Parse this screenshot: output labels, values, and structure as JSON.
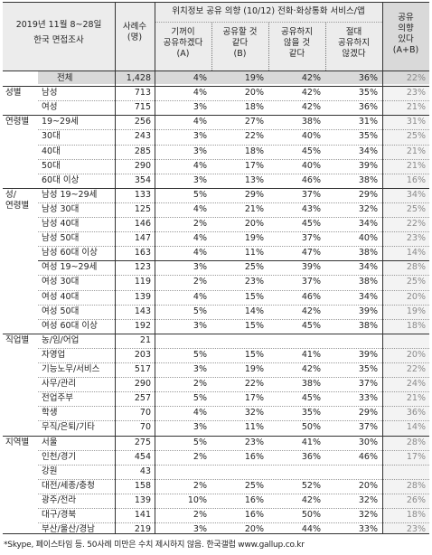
{
  "header": {
    "period": "2019년 11월 8~28일",
    "survey": "한국 면접조사",
    "cases": "사례수\n(명)",
    "group_title": "위치정보 공유 의향 (10/12) 전화·화상통화 서비스/앱",
    "col_a": "기꺼이\n공유하겠다\n(A)",
    "col_b": "공유할 것\n같다\n(B)",
    "col_c": "공유하지\n않을 것\n같다",
    "col_d": "절대\n공유하지\n않겠다",
    "col_ab": "공유\n의향\n있다\n(A+B)"
  },
  "rows": [
    {
      "group": "",
      "label": "전체",
      "n": "1,428",
      "a": "4%",
      "b": "19%",
      "c": "42%",
      "d": "36%",
      "ab": "22%"
    },
    {
      "group": "성별",
      "label": "남성",
      "n": "713",
      "a": "4%",
      "b": "20%",
      "c": "42%",
      "d": "35%",
      "ab": "23%"
    },
    {
      "group": "",
      "label": "여성",
      "n": "715",
      "a": "3%",
      "b": "18%",
      "c": "42%",
      "d": "36%",
      "ab": "21%"
    },
    {
      "group": "연령별",
      "label": "19~29세",
      "n": "256",
      "a": "4%",
      "b": "27%",
      "c": "38%",
      "d": "31%",
      "ab": "31%"
    },
    {
      "group": "",
      "label": "30대",
      "n": "243",
      "a": "3%",
      "b": "22%",
      "c": "40%",
      "d": "35%",
      "ab": "25%"
    },
    {
      "group": "",
      "label": "40대",
      "n": "285",
      "a": "3%",
      "b": "18%",
      "c": "45%",
      "d": "34%",
      "ab": "21%"
    },
    {
      "group": "",
      "label": "50대",
      "n": "290",
      "a": "4%",
      "b": "17%",
      "c": "40%",
      "d": "39%",
      "ab": "21%"
    },
    {
      "group": "",
      "label": "60대 이상",
      "n": "354",
      "a": "3%",
      "b": "13%",
      "c": "46%",
      "d": "38%",
      "ab": "16%"
    },
    {
      "group": "성/\n연령별",
      "label": "남성 19~29세",
      "n": "133",
      "a": "5%",
      "b": "29%",
      "c": "37%",
      "d": "29%",
      "ab": "34%"
    },
    {
      "group": "",
      "label": "남성 30대",
      "n": "125",
      "a": "4%",
      "b": "21%",
      "c": "43%",
      "d": "32%",
      "ab": "25%"
    },
    {
      "group": "",
      "label": "남성 40대",
      "n": "146",
      "a": "2%",
      "b": "20%",
      "c": "45%",
      "d": "34%",
      "ab": "22%"
    },
    {
      "group": "",
      "label": "남성 50대",
      "n": "147",
      "a": "4%",
      "b": "19%",
      "c": "37%",
      "d": "40%",
      "ab": "23%"
    },
    {
      "group": "",
      "label": "남성 60대 이상",
      "n": "163",
      "a": "4%",
      "b": "11%",
      "c": "47%",
      "d": "38%",
      "ab": "14%"
    },
    {
      "group": "",
      "label": "여성 19~29세",
      "n": "123",
      "a": "3%",
      "b": "25%",
      "c": "39%",
      "d": "34%",
      "ab": "28%"
    },
    {
      "group": "",
      "label": "여성 30대",
      "n": "119",
      "a": "2%",
      "b": "23%",
      "c": "37%",
      "d": "38%",
      "ab": "25%"
    },
    {
      "group": "",
      "label": "여성 40대",
      "n": "139",
      "a": "4%",
      "b": "15%",
      "c": "46%",
      "d": "34%",
      "ab": "20%"
    },
    {
      "group": "",
      "label": "여성 50대",
      "n": "143",
      "a": "5%",
      "b": "14%",
      "c": "42%",
      "d": "39%",
      "ab": "19%"
    },
    {
      "group": "",
      "label": "여성 60대 이상",
      "n": "192",
      "a": "3%",
      "b": "15%",
      "c": "45%",
      "d": "38%",
      "ab": "18%"
    },
    {
      "group": "직업별",
      "label": "농/임/어업",
      "n": "21",
      "a": "",
      "b": "",
      "c": "",
      "d": "",
      "ab": ""
    },
    {
      "group": "",
      "label": "자영업",
      "n": "203",
      "a": "5%",
      "b": "15%",
      "c": "41%",
      "d": "39%",
      "ab": "20%"
    },
    {
      "group": "",
      "label": "기능노무/서비스",
      "n": "517",
      "a": "3%",
      "b": "19%",
      "c": "42%",
      "d": "35%",
      "ab": "22%"
    },
    {
      "group": "",
      "label": "사무/관리",
      "n": "290",
      "a": "2%",
      "b": "22%",
      "c": "38%",
      "d": "37%",
      "ab": "24%"
    },
    {
      "group": "",
      "label": "전업주부",
      "n": "257",
      "a": "5%",
      "b": "17%",
      "c": "45%",
      "d": "33%",
      "ab": "21%"
    },
    {
      "group": "",
      "label": "학생",
      "n": "70",
      "a": "4%",
      "b": "32%",
      "c": "35%",
      "d": "29%",
      "ab": "36%"
    },
    {
      "group": "",
      "label": "무직/은퇴/기타",
      "n": "70",
      "a": "3%",
      "b": "11%",
      "c": "50%",
      "d": "37%",
      "ab": "14%"
    },
    {
      "group": "지역별",
      "label": "서울",
      "n": "275",
      "a": "5%",
      "b": "23%",
      "c": "41%",
      "d": "30%",
      "ab": "28%"
    },
    {
      "group": "",
      "label": "인천/경기",
      "n": "454",
      "a": "2%",
      "b": "16%",
      "c": "36%",
      "d": "46%",
      "ab": "17%"
    },
    {
      "group": "",
      "label": "강원",
      "n": "43",
      "a": "",
      "b": "",
      "c": "",
      "d": "",
      "ab": ""
    },
    {
      "group": "",
      "label": "대전/세종/충청",
      "n": "158",
      "a": "2%",
      "b": "25%",
      "c": "52%",
      "d": "20%",
      "ab": "28%"
    },
    {
      "group": "",
      "label": "광주/전라",
      "n": "139",
      "a": "10%",
      "b": "16%",
      "c": "42%",
      "d": "32%",
      "ab": "26%"
    },
    {
      "group": "",
      "label": "대구/경북",
      "n": "141",
      "a": "2%",
      "b": "16%",
      "c": "50%",
      "d": "32%",
      "ab": "18%"
    },
    {
      "group": "",
      "label": "부산/울산/경남",
      "n": "219",
      "a": "3%",
      "b": "20%",
      "c": "44%",
      "d": "33%",
      "ab": "23%"
    }
  ],
  "footnote": "*Skype, 페이스타임 등. 50사례 미만은 수치 제시하지 않음. 한국갤럽 www.gallup.co.kr",
  "colors": {
    "header_bg": "#ececec",
    "total_row_bg": "#d9d9d9",
    "ab_header_bg": "#d9d9d9",
    "gray_text": "#8a8a8a"
  }
}
